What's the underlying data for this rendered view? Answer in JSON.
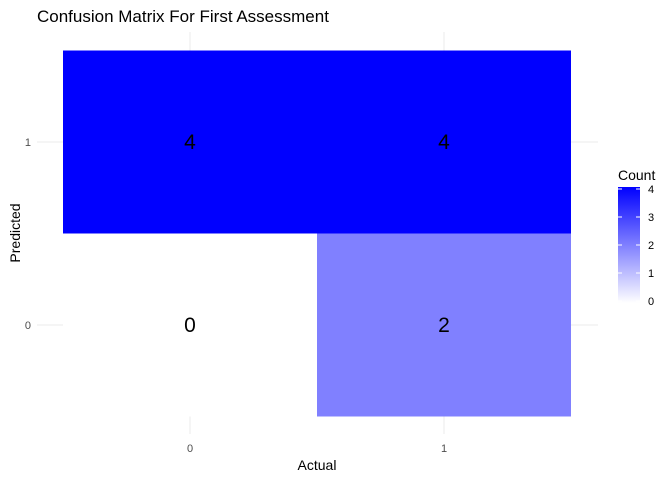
{
  "chart_data": {
    "type": "heatmap",
    "title": "Confusion Matrix For First Assessment",
    "xlabel": "Actual",
    "ylabel": "Predicted",
    "x_categories": [
      "0",
      "1"
    ],
    "y_categories": [
      "0",
      "1"
    ],
    "cells": [
      {
        "x": "0",
        "y": "1",
        "value": 4
      },
      {
        "x": "1",
        "y": "1",
        "value": 4
      },
      {
        "x": "0",
        "y": "0",
        "value": 0
      },
      {
        "x": "1",
        "y": "0",
        "value": 2
      }
    ],
    "legend": {
      "title": "Count",
      "range": [
        0,
        4
      ],
      "ticks": [
        0,
        1,
        2,
        3,
        4
      ],
      "low_color": "#ffffff",
      "high_color": "#0000ff",
      "placement": "right"
    },
    "grid": true
  }
}
